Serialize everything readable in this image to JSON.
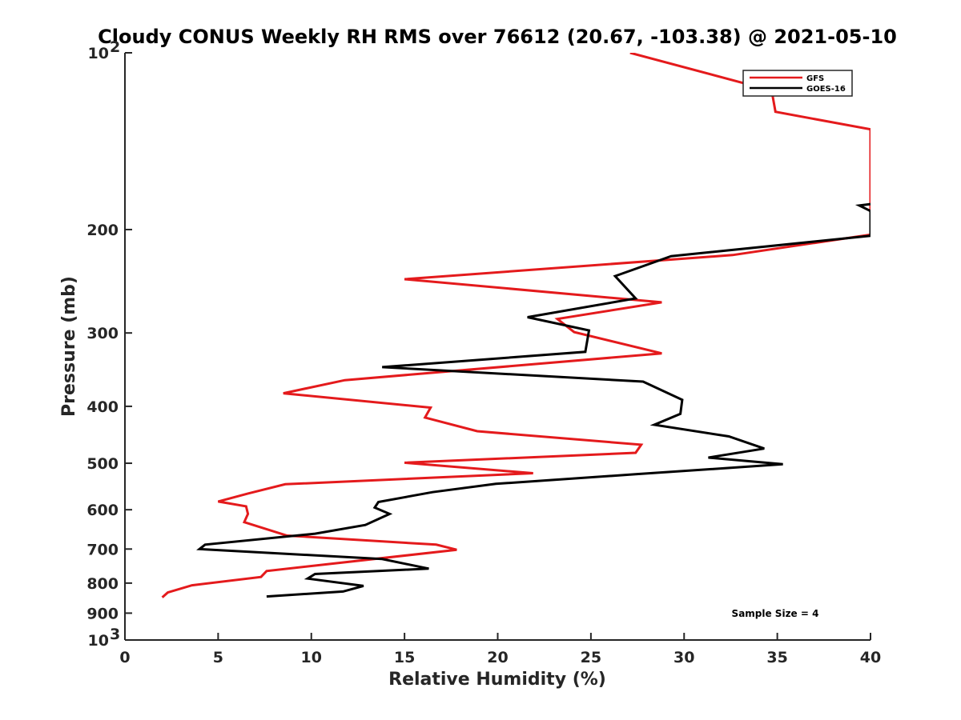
{
  "chart_data": {
    "type": "line",
    "title": "Cloudy CONUS Weekly RH RMS over 76612 (20.67, -103.38) @ 2021-05-10",
    "xlabel": "Relative Humidity (%)",
    "ylabel": "Pressure (mb)",
    "xlim": [
      0,
      40
    ],
    "ylim": [
      100,
      1000
    ],
    "yscale": "log",
    "yreversed": true,
    "grid": false,
    "legend_position": "top-right",
    "x_ticks": [
      {
        "value": 0,
        "label": "0"
      },
      {
        "value": 5,
        "label": "5"
      },
      {
        "value": 10,
        "label": "10"
      },
      {
        "value": 15,
        "label": "15"
      },
      {
        "value": 20,
        "label": "20"
      },
      {
        "value": 25,
        "label": "25"
      },
      {
        "value": 30,
        "label": "30"
      },
      {
        "value": 35,
        "label": "35"
      },
      {
        "value": 40,
        "label": "40"
      }
    ],
    "y_ticks": [
      {
        "value": 100,
        "label": "10",
        "sup": "2"
      },
      {
        "value": 200,
        "label": "200"
      },
      {
        "value": 300,
        "label": "300"
      },
      {
        "value": 400,
        "label": "400"
      },
      {
        "value": 500,
        "label": "500"
      },
      {
        "value": 600,
        "label": "600"
      },
      {
        "value": 700,
        "label": "700"
      },
      {
        "value": 800,
        "label": "800"
      },
      {
        "value": 900,
        "label": "900"
      },
      {
        "value": 1000,
        "label": "10",
        "sup": "3"
      }
    ],
    "series": [
      {
        "name": "GFS",
        "color": "#e41a1c",
        "points": [
          [
            27.1,
            100
          ],
          [
            34.7,
            116
          ],
          [
            34.9,
            126
          ],
          [
            40,
            135
          ],
          [
            40,
            135
          ],
          [
            40,
            204
          ],
          [
            32.6,
            221
          ],
          [
            15.0,
            243
          ],
          [
            28.8,
            266
          ],
          [
            23.2,
            284
          ],
          [
            24.1,
            299
          ],
          [
            28.8,
            325
          ],
          [
            11.8,
            361
          ],
          [
            8.5,
            380
          ],
          [
            16.4,
            402
          ],
          [
            16.1,
            418
          ],
          [
            18.9,
            441
          ],
          [
            27.7,
            465
          ],
          [
            27.4,
            480
          ],
          [
            15.0,
            499
          ],
          [
            21.9,
            520
          ],
          [
            8.6,
            543
          ],
          [
            6.6,
            563
          ],
          [
            5.0,
            581
          ],
          [
            6.5,
            592
          ],
          [
            6.6,
            610
          ],
          [
            6.4,
            630
          ],
          [
            8.7,
            664
          ],
          [
            16.7,
            688
          ],
          [
            17.8,
            702
          ],
          [
            7.6,
            763
          ],
          [
            7.3,
            781
          ],
          [
            3.6,
            807
          ],
          [
            2.3,
            830
          ],
          [
            2.0,
            846
          ]
        ]
      },
      {
        "name": "GOES-16",
        "color": "#000000",
        "points": [
          [
            40,
            181
          ],
          [
            39.4,
            182
          ],
          [
            40,
            186
          ],
          [
            40,
            186
          ],
          [
            40,
            205
          ],
          [
            29.3,
            222
          ],
          [
            26.3,
            240
          ],
          [
            27.4,
            262
          ],
          [
            21.6,
            282
          ],
          [
            24.9,
            297
          ],
          [
            24.7,
            323
          ],
          [
            13.8,
            343
          ],
          [
            27.8,
            363
          ],
          [
            29.9,
            390
          ],
          [
            29.8,
            412
          ],
          [
            28.4,
            430
          ],
          [
            32.4,
            450
          ],
          [
            34.3,
            472
          ],
          [
            31.3,
            489
          ],
          [
            35.3,
            502
          ],
          [
            27.4,
            522
          ],
          [
            19.9,
            542
          ],
          [
            16.5,
            560
          ],
          [
            13.6,
            582
          ],
          [
            13.4,
            595
          ],
          [
            14.2,
            610
          ],
          [
            12.9,
            637
          ],
          [
            10.2,
            659
          ],
          [
            4.3,
            688
          ],
          [
            4.0,
            700
          ],
          [
            13.8,
            728
          ],
          [
            16.3,
            756
          ],
          [
            10.2,
            772
          ],
          [
            9.8,
            786
          ],
          [
            12.8,
            809
          ],
          [
            11.7,
            827
          ],
          [
            7.6,
            843
          ]
        ]
      }
    ],
    "annotations": [
      {
        "text": "Sample Size = 4",
        "anchor": "bottom-right"
      }
    ]
  }
}
